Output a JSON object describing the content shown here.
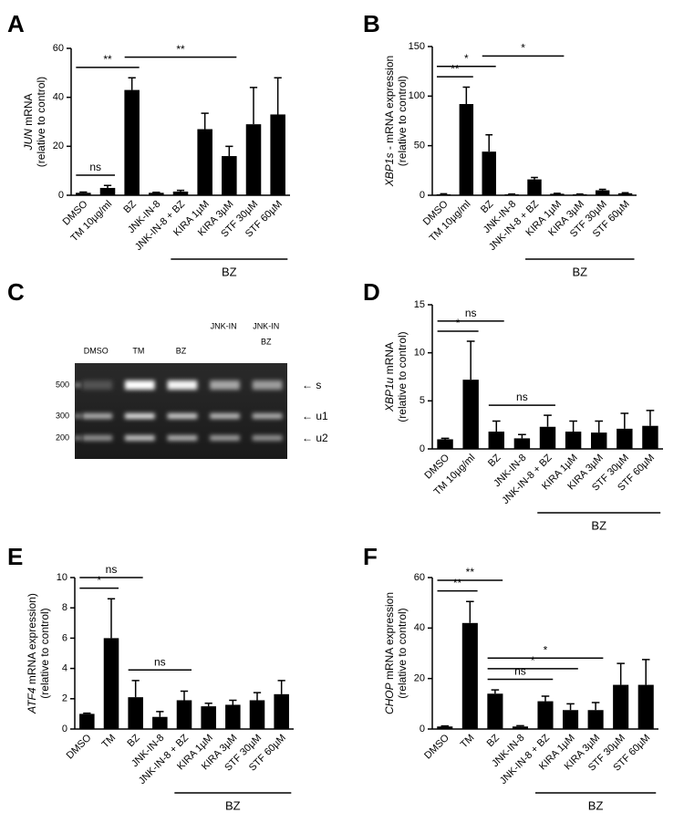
{
  "chart_data": [
    {
      "type": "bar",
      "panel": "A",
      "ylabel": {
        "gene": "JUN",
        "rest": " mRNA",
        "line2": "(relative to control)"
      },
      "categories": [
        "DMSO",
        "TM 10µg/ml",
        "BZ",
        "JNK-IN-8",
        "JNK-IN-8 + BZ",
        "KIRA 1µM",
        "KIRA 3µM",
        "STF 30µM",
        "STF 60µM"
      ],
      "values": [
        1,
        3,
        43,
        1,
        1.5,
        27,
        16,
        29,
        33
      ],
      "errors": [
        0.3,
        1,
        5,
        0.2,
        0.5,
        6.5,
        4,
        15,
        15
      ],
      "color": "#000000",
      "ylim": [
        0,
        60
      ],
      "yticks": [
        0,
        20,
        40,
        60
      ],
      "annotations": [
        {
          "from": 0,
          "to": 1,
          "label": "ns"
        },
        {
          "from": 0,
          "to": 2,
          "label": "**"
        },
        {
          "from": 2,
          "to": 6,
          "label": "**"
        }
      ],
      "group": {
        "from": 4,
        "to": 8,
        "label": "BZ"
      }
    },
    {
      "type": "bar",
      "panel": "B",
      "ylabel": {
        "gene": "XBP1s",
        "rest": " - mRNA expression",
        "line2": "(relative to control)"
      },
      "categories": [
        "DMSO",
        "TM 10µg/ml",
        "BZ",
        "JNK-IN-8",
        "JNK-IN-8 + BZ",
        "KIRA 1µM",
        "KIRA 3µM",
        "STF 30µM",
        "STF 60µM"
      ],
      "values": [
        1,
        92,
        44,
        1,
        16,
        1.5,
        1,
        5,
        2
      ],
      "errors": [
        0.5,
        17,
        17,
        0.3,
        2,
        0.5,
        0.3,
        1,
        0.5
      ],
      "color": "#000000",
      "ylim": [
        0,
        150
      ],
      "yticks": [
        0,
        50,
        100,
        150
      ],
      "annotations": [
        {
          "from": 0,
          "to": 1,
          "label": "**"
        },
        {
          "from": 0,
          "to": 2,
          "label": "*"
        },
        {
          "from": 2,
          "to": 5,
          "label": "*"
        }
      ],
      "group": {
        "from": 4,
        "to": 8,
        "label": "BZ"
      }
    },
    {
      "type": "gel",
      "panel": "C",
      "lanes": [
        [
          "DMSO"
        ],
        [
          "TM"
        ],
        [
          "BZ"
        ],
        [
          "JNK-IN"
        ],
        [
          "JNK-IN",
          "BZ"
        ]
      ],
      "markers": [
        500,
        300,
        200
      ],
      "bands": [
        "← s",
        "← u1",
        "← u2"
      ]
    },
    {
      "type": "bar",
      "panel": "D",
      "ylabel": {
        "gene": "XBP1u",
        "rest": " mRNA",
        "line2": "(relative to control)"
      },
      "categories": [
        "DMSO",
        "TM 10µg/ml",
        "BZ",
        "JNK-IN-8",
        "JNK-IN-8 + BZ",
        "KIRA 1µM",
        "KIRA 3µM",
        "STF 30µM",
        "STF 60µM"
      ],
      "values": [
        1,
        7.2,
        1.8,
        1.1,
        2.3,
        1.8,
        1.7,
        2.1,
        2.4
      ],
      "errors": [
        0.1,
        4,
        1.1,
        0.4,
        1.2,
        1.1,
        1.2,
        1.6,
        1.6
      ],
      "color": "#000000",
      "ylim": [
        0,
        15
      ],
      "yticks": [
        0,
        5,
        10,
        15
      ],
      "annotations": [
        {
          "from": 2,
          "to": 4,
          "label": "ns"
        },
        {
          "from": 0,
          "to": 1,
          "label": "*"
        },
        {
          "from": 0,
          "to": 2,
          "label": "ns"
        }
      ],
      "group": {
        "from": 4,
        "to": 8,
        "label": "BZ"
      }
    },
    {
      "type": "bar",
      "panel": "E",
      "ylabel": {
        "gene": "ATF4",
        "rest": " mRNA expression)",
        "line2": "(relative to control)"
      },
      "categories": [
        "DMSO",
        "TM",
        "BZ",
        "JNK-IN-8",
        "JNK-IN-8 + BZ",
        "KIRA 1µM",
        "KIRA 3µM",
        "STF 30µM",
        "STF 60µM"
      ],
      "values": [
        1,
        6,
        2.1,
        0.8,
        1.9,
        1.5,
        1.6,
        1.9,
        2.3
      ],
      "errors": [
        0.05,
        2.6,
        1.1,
        0.35,
        0.6,
        0.2,
        0.3,
        0.5,
        0.9
      ],
      "color": "#000000",
      "ylim": [
        0,
        10
      ],
      "yticks": [
        0,
        2,
        4,
        6,
        8,
        10
      ],
      "annotations": [
        {
          "from": 2,
          "to": 4,
          "label": "ns"
        },
        {
          "from": 0,
          "to": 1,
          "label": "*"
        },
        {
          "from": 0,
          "to": 2,
          "label": "ns"
        }
      ],
      "group": {
        "from": 4,
        "to": 8,
        "label": "BZ"
      }
    },
    {
      "type": "bar",
      "panel": "F",
      "ylabel": {
        "gene": "CHOP",
        "rest": " mRNA expression",
        "line2": "(relative to control)"
      },
      "categories": [
        "DMSO",
        "TM",
        "BZ",
        "JNK-IN-8",
        "JNK-IN-8 + BZ",
        "KIRA 1µM",
        "KIRA 3µM",
        "STF 30µM",
        "STF 60µM"
      ],
      "values": [
        1,
        42,
        14,
        1,
        11,
        7.5,
        7.5,
        17.5,
        17.5
      ],
      "errors": [
        0.2,
        8.5,
        1.5,
        0.3,
        2,
        2.5,
        3,
        8.5,
        10
      ],
      "color": "#000000",
      "ylim": [
        0,
        60
      ],
      "yticks": [
        0,
        20,
        40,
        60
      ],
      "annotations": [
        {
          "from": 2,
          "to": 4,
          "label": "ns"
        },
        {
          "from": 2,
          "to": 5,
          "label": "*"
        },
        {
          "from": 2,
          "to": 6,
          "label": "*"
        },
        {
          "from": 0,
          "to": 1,
          "label": "**"
        },
        {
          "from": 0,
          "to": 2,
          "label": "**"
        }
      ],
      "group": {
        "from": 4,
        "to": 8,
        "label": "BZ"
      }
    }
  ]
}
